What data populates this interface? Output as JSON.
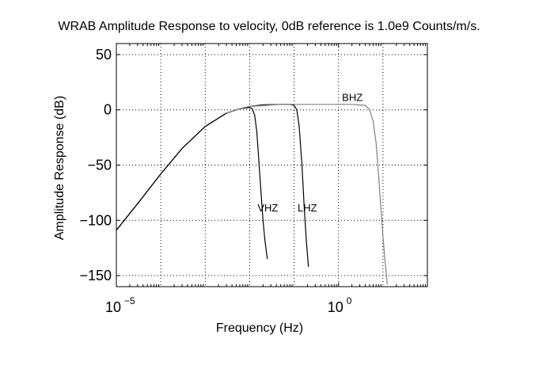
{
  "chart_data": {
    "type": "line",
    "title": "WRAB Amplitude Response to velocity, 0dB reference is 1.0e9 Counts/m/s.",
    "xlabel": "Frequency (Hz)",
    "ylabel": "Amplitude Response (dB)",
    "xscale": "log",
    "xlim": [
      1e-05,
      100
    ],
    "ylim": [
      -160,
      60
    ],
    "x_ticks": [
      {
        "value": 1e-05,
        "base": "10",
        "exp": "−5"
      },
      {
        "value": 1,
        "base": "10",
        "exp": "0"
      }
    ],
    "y_ticks": [
      {
        "value": 50,
        "label": "50"
      },
      {
        "value": 0,
        "label": "0"
      },
      {
        "value": -50,
        "label": "−50"
      },
      {
        "value": -100,
        "label": "−100"
      },
      {
        "value": -150,
        "label": "−150"
      }
    ],
    "grid": true,
    "grid_x_decades": [
      0.0001,
      0.001,
      0.01,
      0.1,
      1,
      10
    ],
    "series": [
      {
        "name": "VHZ",
        "color": "#000000",
        "label_at": [
          0.015,
          -92
        ],
        "x": [
          1e-05,
          3e-05,
          0.0001,
          0.0003,
          0.001,
          0.003,
          0.006,
          0.01,
          0.0115,
          0.013,
          0.0145,
          0.016,
          0.018,
          0.02,
          0.022,
          0.025
        ],
        "y": [
          -109,
          -85,
          -58,
          -35,
          -15,
          -3,
          1,
          2,
          1,
          -5,
          -20,
          -45,
          -75,
          -100,
          -118,
          -135
        ]
      },
      {
        "name": "LHZ",
        "color": "#000000",
        "label_at": [
          0.12,
          -92
        ],
        "x": [
          1e-05,
          3e-05,
          0.0001,
          0.0003,
          0.001,
          0.003,
          0.006,
          0.01,
          0.02,
          0.05,
          0.08,
          0.1,
          0.115,
          0.13,
          0.15,
          0.17,
          0.19,
          0.21
        ],
        "y": [
          -109,
          -85,
          -58,
          -35,
          -15,
          -3,
          1,
          3,
          4.5,
          5,
          5,
          4,
          0,
          -15,
          -50,
          -90,
          -120,
          -142
        ]
      },
      {
        "name": "BHZ",
        "color": "#808080",
        "label_at": [
          1.2,
          8
        ],
        "x": [
          0.003,
          0.006,
          0.01,
          0.05,
          0.3,
          1,
          2,
          4,
          5,
          6,
          7,
          8,
          9,
          10,
          11,
          12.5
        ],
        "y": [
          -3,
          1,
          3,
          5,
          5,
          5,
          5,
          4,
          0,
          -10,
          -30,
          -60,
          -90,
          -115,
          -135,
          -158
        ]
      }
    ]
  }
}
